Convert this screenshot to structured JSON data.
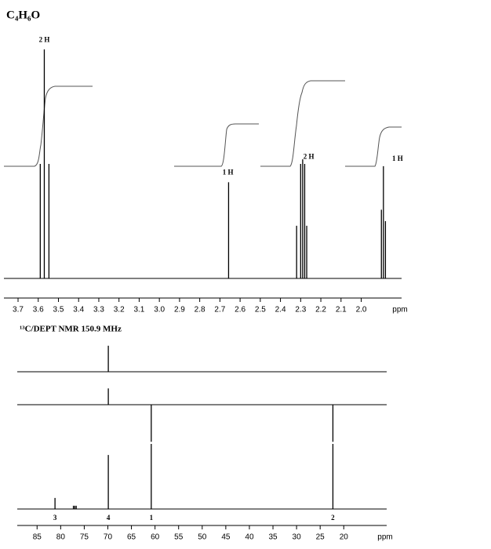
{
  "chart_data": [
    {
      "type": "spectrum",
      "title": "C₄H₆O",
      "xlabel": "ppm",
      "color": "#000000",
      "xlim": [
        3.77,
        1.8
      ],
      "xticks": [
        3.7,
        3.6,
        3.5,
        3.4,
        3.3,
        3.2,
        3.1,
        {
          "value": 3,
          "label": "3.0"
        },
        2.9,
        2.8,
        2.7,
        2.6,
        2.5,
        2.4,
        2.3,
        2.2,
        2.1,
        {
          "value": 2,
          "label": "2.0"
        }
      ],
      "series": [
        {
          "x": [
            3.59,
            3.57,
            3.547,
            2.657,
            2.32,
            2.3,
            2.29,
            2.28,
            2.27,
            1.9,
            1.89,
            1.88
          ],
          "values": [
            0.5,
            1.0,
            0.5,
            0.42,
            0.23,
            0.5,
            0.52,
            0.5,
            0.23,
            0.3,
            0.49,
            0.25
          ]
        }
      ],
      "annotations": [
        {
          "text": "2 H",
          "x": 3.57,
          "y": 1.04
        },
        {
          "text": "1 H",
          "x": 2.66,
          "y": 0.46
        },
        {
          "text": "2 H",
          "x": 2.26,
          "y": 0.53
        },
        {
          "text": "1 H",
          "x": 1.82,
          "y": 0.52
        }
      ]
    },
    {
      "type": "spectrum",
      "title": "¹³C/DEPT NMR 150.9 MHz",
      "xlabel": "ppm",
      "color": "#000000",
      "xlim": [
        89.2,
        10.9
      ],
      "xticks": [
        85,
        80,
        75,
        70,
        65,
        60,
        55,
        50,
        45,
        40,
        35,
        30,
        25,
        20
      ],
      "series": [
        {
          "x": [
            69.9
          ],
          "values": [
            0.4
          ]
        },
        {
          "x": [
            69.9,
            60.8,
            22.3
          ],
          "values": [
            0.25,
            -0.57,
            -0.57
          ]
        },
        {
          "x": [
            81.2,
            77.3,
            77.0,
            76.7,
            69.9,
            60.8,
            22.3
          ],
          "values": [
            0.17,
            0.05,
            0.05,
            0.05,
            0.83,
            1.0,
            1.0
          ]
        }
      ],
      "annotations": [
        {
          "text": "3",
          "x": 81.2
        },
        {
          "text": "4",
          "x": 69.9
        },
        {
          "text": "1",
          "x": 60.8
        },
        {
          "text": "2",
          "x": 22.3
        }
      ]
    }
  ]
}
